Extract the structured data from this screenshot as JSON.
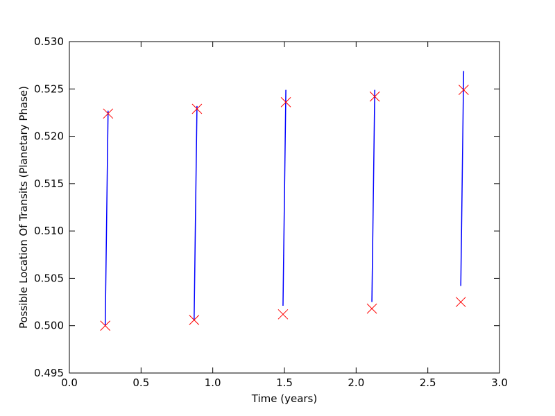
{
  "chart_data": {
    "type": "line",
    "title": "",
    "xlabel": "Time (years)",
    "ylabel": "Possible Location Of Transits (Planetary Phase)",
    "xlim": [
      0.0,
      3.0
    ],
    "ylim": [
      0.495,
      0.53
    ],
    "x_ticks": [
      0.0,
      0.5,
      1.0,
      1.5,
      2.0,
      2.5,
      3.0
    ],
    "x_tick_labels": [
      "0.0",
      "0.5",
      "1.0",
      "1.5",
      "2.0",
      "2.5",
      "3.0"
    ],
    "y_ticks": [
      0.495,
      0.5,
      0.505,
      0.51,
      0.515,
      0.52,
      0.525,
      0.53
    ],
    "y_tick_labels": [
      "0.495",
      "0.500",
      "0.505",
      "0.510",
      "0.515",
      "0.520",
      "0.525",
      "0.530"
    ],
    "grid": false,
    "series": [
      {
        "style": "line",
        "color": "#0000ff",
        "segments": [
          {
            "x": [
              0.25,
              0.27
            ],
            "y": [
              0.5,
              0.5227
            ]
          },
          {
            "x": [
              0.87,
              0.89
            ],
            "y": [
              0.5006,
              0.5232
            ]
          },
          {
            "x": [
              1.49,
              1.51
            ],
            "y": [
              0.5021,
              0.5249
            ]
          },
          {
            "x": [
              2.11,
              2.13
            ],
            "y": [
              0.5025,
              0.5249
            ]
          },
          {
            "x": [
              2.73,
              2.75
            ],
            "y": [
              0.5042,
              0.5269
            ]
          }
        ]
      },
      {
        "style": "scatter",
        "marker": "x",
        "color": "#ff0000",
        "points": [
          {
            "x": 0.25,
            "y": 0.5
          },
          {
            "x": 0.27,
            "y": 0.5224
          },
          {
            "x": 0.87,
            "y": 0.5006
          },
          {
            "x": 0.89,
            "y": 0.5229
          },
          {
            "x": 1.49,
            "y": 0.5012
          },
          {
            "x": 1.51,
            "y": 0.5236
          },
          {
            "x": 2.11,
            "y": 0.5018
          },
          {
            "x": 2.13,
            "y": 0.5242
          },
          {
            "x": 2.73,
            "y": 0.5025
          },
          {
            "x": 2.75,
            "y": 0.5249
          }
        ]
      }
    ]
  }
}
